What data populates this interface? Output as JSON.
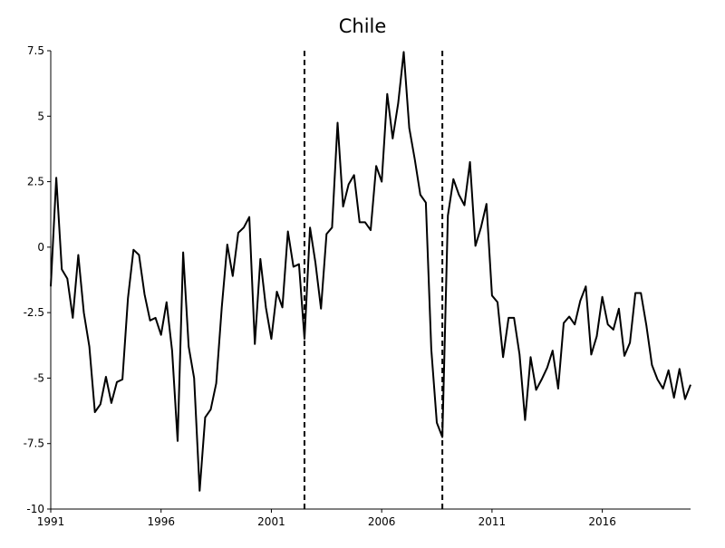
{
  "chart_data": {
    "type": "line",
    "title": "Chile",
    "xlabel": "",
    "ylabel": "",
    "xlim": [
      1991,
      2020
    ],
    "ylim": [
      -10,
      7.5
    ],
    "x_ticks": [
      1991,
      1996,
      2001,
      2006,
      2011,
      2016
    ],
    "x_tick_labels": [
      "1991",
      "1996",
      "2001",
      "2006",
      "2011",
      "2016"
    ],
    "y_ticks": [
      7.5,
      5,
      2.5,
      0,
      -2.5,
      -5,
      -7.5,
      -10
    ],
    "y_tick_labels": [
      "7.5",
      "5",
      "2.5",
      "0",
      "-2.5",
      "-5",
      "-7.5",
      "-10"
    ],
    "grid": false,
    "line_color": "#000000",
    "vlines": [
      2002.5,
      2008.75
    ],
    "series": [
      {
        "x": [
          1991,
          1991.25,
          1991.5,
          1991.75,
          1992,
          1992.25,
          1992.5,
          1992.75,
          1993,
          1993.25,
          1993.5,
          1993.75,
          1994,
          1994.25,
          1994.5,
          1994.75,
          1995,
          1995.25,
          1995.5,
          1995.75,
          1996,
          1996.25,
          1996.5,
          1996.75,
          1997,
          1997.25,
          1997.5,
          1997.75,
          1998,
          1998.25,
          1998.5,
          1998.75,
          1999,
          1999.25,
          1999.5,
          1999.75,
          2000,
          2000.25,
          2000.5,
          2000.75,
          2001,
          2001.25,
          2001.5,
          2001.75,
          2002,
          2002.25,
          2002.5,
          2002.75,
          2003,
          2003.25,
          2003.5,
          2003.75,
          2004,
          2004.25,
          2004.5,
          2004.75,
          2005,
          2005.25,
          2005.5,
          2005.75,
          2006,
          2006.25,
          2006.5,
          2006.75,
          2007,
          2007.25,
          2007.5,
          2007.75,
          2008,
          2008.25,
          2008.5,
          2008.75,
          2009,
          2009.25,
          2009.5,
          2009.75,
          2010,
          2010.25,
          2010.5,
          2010.75,
          2011,
          2011.25,
          2011.5,
          2011.75,
          2012,
          2012.25,
          2012.5,
          2012.75,
          2013,
          2013.25,
          2013.5,
          2013.75,
          2014,
          2014.25,
          2014.5,
          2014.75,
          2015,
          2015.25,
          2015.5,
          2015.75,
          2016,
          2016.25,
          2016.5,
          2016.75,
          2017,
          2017.25,
          2017.5,
          2017.75,
          2018,
          2018.25,
          2018.5,
          2018.75,
          2019,
          2019.25,
          2019.5,
          2019.75,
          2020
        ],
        "y": [
          -1.5,
          2.65,
          -0.85,
          -1.2,
          -2.7,
          -0.3,
          -2.5,
          -3.8,
          -6.3,
          -6.0,
          -4.95,
          -5.95,
          -5.15,
          -5.05,
          -1.95,
          -0.1,
          -0.3,
          -1.8,
          -2.8,
          -2.7,
          -3.35,
          -2.1,
          -3.95,
          -7.4,
          -0.2,
          -3.8,
          -5.0,
          -9.3,
          -6.5,
          -6.2,
          -5.2,
          -2.3,
          0.1,
          -1.1,
          0.55,
          0.75,
          1.15,
          -3.7,
          -0.45,
          -2.3,
          -3.5,
          -1.7,
          -2.3,
          0.6,
          -0.75,
          -0.65,
          -3.5,
          0.75,
          -0.6,
          -2.35,
          0.5,
          0.75,
          4.75,
          1.55,
          2.4,
          2.75,
          0.95,
          0.95,
          0.65,
          3.1,
          2.5,
          5.85,
          4.15,
          5.5,
          7.45,
          4.55,
          3.35,
          2.0,
          1.7,
          -3.9,
          -6.7,
          -7.25,
          1.2,
          2.6,
          2.0,
          1.6,
          3.25,
          0.05,
          0.75,
          1.65,
          -1.85,
          -2.1,
          -4.2,
          -2.7,
          -2.7,
          -4.1,
          -6.6,
          -4.2,
          -5.45,
          -5.05,
          -4.6,
          -3.95,
          -5.4,
          -2.9,
          -2.65,
          -2.95,
          -2.05,
          -1.5,
          -4.1,
          -3.4,
          -1.9,
          -2.95,
          -3.15,
          -2.35,
          -4.15,
          -3.65,
          -1.75,
          -1.75,
          -3.0,
          -4.5,
          -5.05,
          -5.4,
          -4.7,
          -5.75,
          -4.65,
          -5.8,
          -5.25
        ]
      }
    ]
  }
}
